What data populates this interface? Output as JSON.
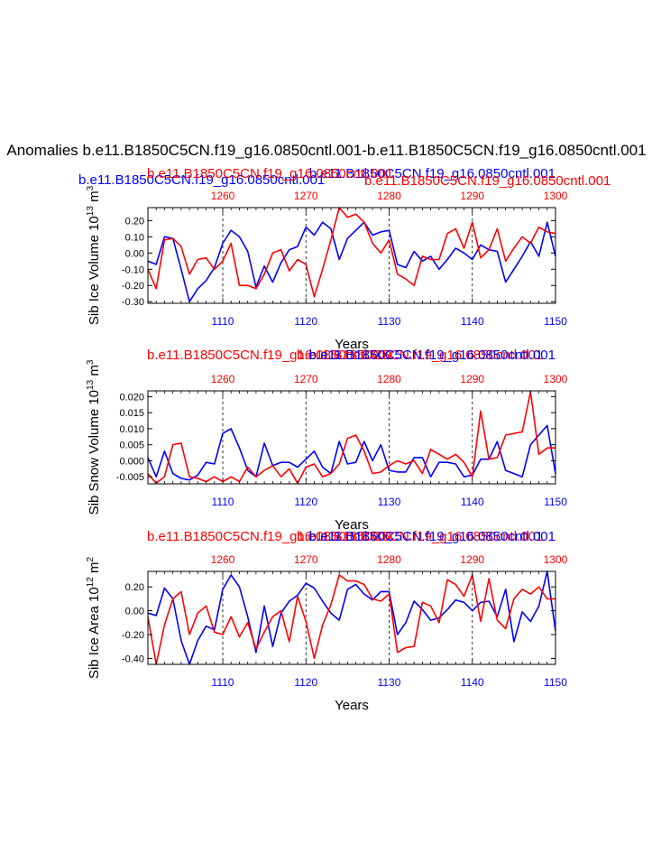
{
  "figure": {
    "main_title": "Anomalies b.e11.B1850C5CN.f19_g16.0850cntl.001-b.e11.B1850C5CN.f19_g16.0850cntl.001",
    "blue_case": "b.e11.B1850C5CN.f19_g16.0850cntl.001",
    "red_case": "b.e11.B1850C5CN.f19_g16.0850cntl.001",
    "colors": {
      "blue": "#0000ff",
      "red": "#ff0000",
      "black": "#000000"
    }
  },
  "chart_data": [
    {
      "type": "line",
      "ylabel_main": "Sib Ice Volume 10",
      "ylabel_sup": "13",
      "ylabel_unit": " m",
      "ylabel_unit_sup": "3",
      "xlabel": "Years",
      "bottom_axis": {
        "range": [
          1101,
          1150
        ],
        "ticks": [
          1110,
          1120,
          1130,
          1140,
          1150
        ]
      },
      "top_axis": {
        "range": [
          1251,
          1300
        ],
        "ticks": [
          1260,
          1270,
          1280,
          1290,
          1300
        ]
      },
      "ylim": [
        -0.31,
        0.28
      ],
      "yticks": [
        -0.3,
        -0.2,
        -0.1,
        0.0,
        0.1,
        0.2
      ],
      "ytick_labels": [
        "-0.30",
        "-0.20",
        "-0.10",
        "0.00",
        "0.10",
        "0.20"
      ],
      "series": [
        {
          "name": "b.e11.B1850C5CN.f19_g16.0850cntl.001",
          "axis": "bottom",
          "color": "#0000ff",
          "x": [
            1101,
            1102,
            1103,
            1104,
            1105,
            1106,
            1107,
            1108,
            1109,
            1110,
            1111,
            1112,
            1113,
            1114,
            1115,
            1116,
            1117,
            1118,
            1119,
            1120,
            1121,
            1122,
            1123,
            1124,
            1125,
            1126,
            1127,
            1128,
            1129,
            1130,
            1131,
            1132,
            1133,
            1134,
            1135,
            1136,
            1137,
            1138,
            1139,
            1140,
            1141,
            1142,
            1143,
            1144,
            1145,
            1146,
            1147,
            1148,
            1149,
            1150
          ],
          "values": [
            -0.05,
            -0.07,
            0.1,
            0.09,
            -0.1,
            -0.3,
            -0.22,
            -0.17,
            -0.09,
            0.06,
            0.14,
            0.1,
            0.01,
            -0.21,
            -0.08,
            -0.18,
            -0.06,
            0.02,
            0.04,
            0.16,
            0.11,
            0.19,
            0.15,
            -0.04,
            0.09,
            0.14,
            0.19,
            0.11,
            0.13,
            0.14,
            -0.07,
            -0.09,
            0.01,
            -0.05,
            -0.02,
            -0.1,
            -0.04,
            0.03,
            0.0,
            -0.04,
            0.05,
            0.02,
            0.01,
            -0.18,
            -0.1,
            -0.02,
            0.07,
            -0.02,
            0.19,
            -0.02
          ]
        },
        {
          "name": "b.e11.B1850C5CN.f19_g16.0850cntl.001",
          "axis": "top",
          "color": "#ff0000",
          "x": [
            1251,
            1252,
            1253,
            1254,
            1255,
            1256,
            1257,
            1258,
            1259,
            1260,
            1261,
            1262,
            1263,
            1264,
            1265,
            1266,
            1267,
            1268,
            1269,
            1270,
            1271,
            1272,
            1273,
            1274,
            1275,
            1276,
            1277,
            1278,
            1279,
            1280,
            1281,
            1282,
            1283,
            1284,
            1285,
            1286,
            1287,
            1288,
            1289,
            1290,
            1291,
            1292,
            1293,
            1294,
            1295,
            1296,
            1297,
            1298,
            1299,
            1300
          ],
          "values": [
            -0.1,
            -0.22,
            0.08,
            0.09,
            0.04,
            -0.13,
            -0.04,
            -0.03,
            -0.1,
            -0.05,
            0.06,
            -0.2,
            -0.2,
            -0.22,
            -0.13,
            0.0,
            0.02,
            -0.11,
            -0.04,
            -0.07,
            -0.27,
            -0.1,
            0.08,
            0.28,
            0.22,
            0.24,
            0.19,
            0.06,
            0.0,
            0.08,
            -0.13,
            -0.16,
            -0.2,
            -0.02,
            -0.04,
            -0.04,
            0.12,
            0.15,
            0.03,
            0.19,
            -0.03,
            0.02,
            0.15,
            -0.05,
            0.03,
            0.1,
            0.06,
            0.16,
            0.13,
            0.12
          ]
        }
      ]
    },
    {
      "type": "line",
      "ylabel_main": "Sib Snow Volume 10",
      "ylabel_sup": "13",
      "ylabel_unit": " m",
      "ylabel_unit_sup": "3",
      "xlabel": "Years",
      "bottom_axis": {
        "range": [
          1101,
          1150
        ],
        "ticks": [
          1110,
          1120,
          1130,
          1140,
          1150
        ]
      },
      "top_axis": {
        "range": [
          1251,
          1300
        ],
        "ticks": [
          1260,
          1270,
          1280,
          1290,
          1300
        ]
      },
      "ylim": [
        -0.0072,
        0.0218
      ],
      "yticks": [
        -0.005,
        0.0,
        0.005,
        0.01,
        0.015,
        0.02
      ],
      "ytick_labels": [
        "-0.005",
        "0.000",
        "0.005",
        "0.010",
        "0.015",
        "0.020"
      ],
      "series": [
        {
          "name": "b.e11.B1850C5CN.f19_g16.0850cntl.001",
          "axis": "bottom",
          "color": "#0000ff",
          "x": [
            1101,
            1102,
            1103,
            1104,
            1105,
            1106,
            1107,
            1108,
            1109,
            1110,
            1111,
            1112,
            1113,
            1114,
            1115,
            1116,
            1117,
            1118,
            1119,
            1120,
            1121,
            1122,
            1123,
            1124,
            1125,
            1126,
            1127,
            1128,
            1129,
            1130,
            1131,
            1132,
            1133,
            1134,
            1135,
            1136,
            1137,
            1138,
            1139,
            1140,
            1141,
            1142,
            1143,
            1144,
            1145,
            1146,
            1147,
            1148,
            1149,
            1150
          ],
          "values": [
            0.001,
            -0.005,
            0.003,
            -0.004,
            -0.0055,
            -0.006,
            -0.0045,
            -0.0005,
            -0.001,
            0.0085,
            0.01,
            0.004,
            -0.003,
            -0.005,
            0.0055,
            -0.0015,
            -0.0005,
            -0.0005,
            -0.002,
            0.0005,
            0.003,
            -0.002,
            -0.004,
            0.006,
            -0.001,
            -0.0005,
            0.006,
            0.0,
            0.005,
            -0.003,
            -0.0035,
            -0.0035,
            0.001,
            0.001,
            -0.005,
            -0.0005,
            -0.0005,
            -0.001,
            -0.005,
            -0.0045,
            0.0005,
            0.0005,
            0.006,
            -0.003,
            -0.004,
            -0.005,
            0.005,
            0.008,
            0.011,
            -0.004
          ]
        },
        {
          "name": "b.e11.B1850C5CN.f19_g16.0850cntl.001",
          "axis": "top",
          "color": "#ff0000",
          "x": [
            1251,
            1252,
            1253,
            1254,
            1255,
            1256,
            1257,
            1258,
            1259,
            1260,
            1261,
            1262,
            1263,
            1264,
            1265,
            1266,
            1267,
            1268,
            1269,
            1270,
            1271,
            1272,
            1273,
            1274,
            1275,
            1276,
            1277,
            1278,
            1279,
            1280,
            1281,
            1282,
            1283,
            1284,
            1285,
            1286,
            1287,
            1288,
            1289,
            1290,
            1291,
            1292,
            1293,
            1294,
            1295,
            1296,
            1297,
            1298,
            1299,
            1300
          ],
          "values": [
            -0.004,
            -0.007,
            -0.005,
            0.005,
            0.0055,
            -0.005,
            -0.0055,
            -0.0065,
            -0.005,
            -0.0065,
            -0.005,
            -0.0065,
            -0.002,
            -0.005,
            -0.003,
            -0.0015,
            -0.005,
            -0.0025,
            -0.007,
            -0.002,
            -0.001,
            -0.005,
            -0.004,
            -0.001,
            0.007,
            0.008,
            0.003,
            -0.004,
            -0.0035,
            -0.0015,
            0.0,
            -0.001,
            0.0,
            -0.004,
            0.0035,
            0.002,
            0.0005,
            0.002,
            -0.0005,
            -0.005,
            0.0155,
            0.0005,
            0.001,
            0.008,
            0.0085,
            0.009,
            0.0215,
            0.002,
            0.004,
            0.004
          ]
        }
      ]
    },
    {
      "type": "line",
      "ylabel_main": "Sib Ice Area 10",
      "ylabel_sup": "12",
      "ylabel_unit": " m",
      "ylabel_unit_sup": "2",
      "xlabel": "Years",
      "bottom_axis": {
        "range": [
          1101,
          1150
        ],
        "ticks": [
          1110,
          1120,
          1130,
          1140,
          1150
        ]
      },
      "top_axis": {
        "range": [
          1251,
          1300
        ],
        "ticks": [
          1260,
          1270,
          1280,
          1290,
          1300
        ]
      },
      "ylim": [
        -0.45,
        0.33
      ],
      "yticks": [
        -0.4,
        -0.2,
        0.0,
        0.2
      ],
      "ytick_labels": [
        "-0.40",
        "-0.20",
        "0.00",
        "0.20"
      ],
      "series": [
        {
          "name": "b.e11.B1850C5CN.f19_g16.0850cntl.001",
          "axis": "bottom",
          "color": "#0000ff",
          "x": [
            1101,
            1102,
            1103,
            1104,
            1105,
            1106,
            1107,
            1108,
            1109,
            1110,
            1111,
            1112,
            1113,
            1114,
            1115,
            1116,
            1117,
            1118,
            1119,
            1120,
            1121,
            1122,
            1123,
            1124,
            1125,
            1126,
            1127,
            1128,
            1129,
            1130,
            1131,
            1132,
            1133,
            1134,
            1135,
            1136,
            1137,
            1138,
            1139,
            1140,
            1141,
            1142,
            1143,
            1144,
            1145,
            1146,
            1147,
            1148,
            1149,
            1150
          ],
          "values": [
            -0.02,
            -0.04,
            0.19,
            0.1,
            -0.25,
            -0.45,
            -0.25,
            -0.13,
            -0.16,
            0.18,
            0.3,
            0.2,
            -0.05,
            -0.35,
            0.04,
            -0.3,
            -0.02,
            0.08,
            0.13,
            0.23,
            0.19,
            0.08,
            -0.02,
            -0.08,
            0.18,
            0.22,
            0.14,
            0.09,
            0.16,
            0.16,
            -0.2,
            -0.1,
            0.08,
            0.01,
            -0.08,
            -0.06,
            0.01,
            0.09,
            0.07,
            0.0,
            0.07,
            0.08,
            -0.05,
            0.18,
            -0.26,
            -0.01,
            -0.09,
            0.04,
            0.33,
            -0.17
          ]
        },
        {
          "name": "b.e11.B1850C5CN.f19_g16.0850cntl.001",
          "axis": "top",
          "color": "#ff0000",
          "x": [
            1251,
            1252,
            1253,
            1254,
            1255,
            1256,
            1257,
            1258,
            1259,
            1260,
            1261,
            1262,
            1263,
            1264,
            1265,
            1266,
            1267,
            1268,
            1269,
            1270,
            1271,
            1272,
            1273,
            1274,
            1275,
            1276,
            1277,
            1278,
            1279,
            1280,
            1281,
            1282,
            1283,
            1284,
            1285,
            1286,
            1287,
            1288,
            1289,
            1290,
            1291,
            1292,
            1293,
            1294,
            1295,
            1296,
            1297,
            1298,
            1299,
            1300
          ],
          "values": [
            -0.05,
            -0.45,
            -0.12,
            0.1,
            0.16,
            -0.2,
            -0.02,
            0.04,
            -0.18,
            -0.2,
            -0.05,
            -0.22,
            -0.1,
            -0.32,
            -0.18,
            -0.05,
            0.0,
            -0.26,
            0.12,
            -0.09,
            -0.4,
            -0.12,
            0.05,
            0.3,
            0.25,
            0.25,
            0.22,
            0.1,
            0.08,
            0.14,
            -0.35,
            -0.31,
            -0.3,
            0.07,
            0.04,
            -0.1,
            0.26,
            0.22,
            0.12,
            0.3,
            -0.09,
            0.27,
            -0.08,
            -0.15,
            0.1,
            0.18,
            0.14,
            0.2,
            0.1,
            0.1
          ]
        }
      ]
    }
  ]
}
